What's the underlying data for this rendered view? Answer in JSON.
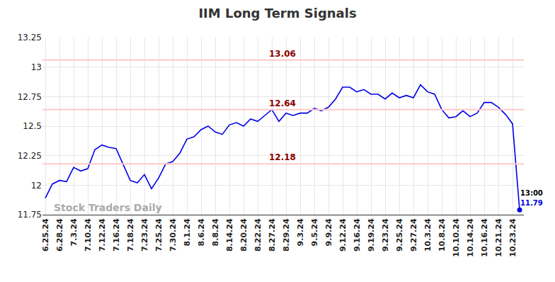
{
  "chart_data": {
    "type": "line",
    "title": "IIM Long Term Signals",
    "categories": [
      "6.25.24",
      null,
      "6.28.24",
      null,
      "7.3.24",
      null,
      "7.10.24",
      null,
      "7.12.24",
      null,
      "7.16.24",
      null,
      "7.18.24",
      null,
      "7.23.24",
      null,
      "7.25.24",
      null,
      "7.30.24",
      null,
      "8.1.24",
      null,
      "8.6.24",
      null,
      "8.8.24",
      null,
      "8.14.24",
      null,
      "8.20.24",
      null,
      "8.22.24",
      null,
      "8.27.24",
      null,
      "8.29.24",
      null,
      "9.3.24",
      null,
      "9.5.24",
      null,
      "9.9.24",
      null,
      "9.12.24",
      null,
      "9.16.24",
      null,
      "9.19.24",
      null,
      "9.23.24",
      null,
      "9.25.24",
      null,
      "9.27.24",
      null,
      "10.3.24",
      null,
      "10.8.24",
      null,
      "10.10.24",
      null,
      "10.14.24",
      null,
      "10.16.24",
      null,
      "10.21.24",
      null,
      "10.23.24",
      null
    ],
    "values": [
      11.89,
      12.01,
      12.04,
      12.03,
      12.15,
      12.12,
      12.14,
      12.3,
      12.34,
      12.32,
      12.31,
      12.17,
      12.04,
      12.02,
      12.09,
      11.97,
      12.06,
      12.18,
      12.2,
      12.27,
      12.39,
      12.41,
      12.47,
      12.5,
      12.45,
      12.43,
      12.51,
      12.53,
      12.5,
      12.56,
      12.54,
      12.59,
      12.64,
      12.54,
      12.61,
      12.59,
      12.61,
      12.61,
      12.65,
      12.63,
      12.66,
      12.73,
      12.83,
      12.83,
      12.79,
      12.81,
      12.77,
      12.77,
      12.73,
      12.78,
      12.74,
      12.76,
      12.74,
      12.85,
      12.79,
      12.77,
      12.64,
      12.57,
      12.58,
      12.63,
      12.58,
      12.61,
      12.7,
      12.7,
      12.66,
      12.6,
      12.52,
      11.79
    ],
    "color": "#0000e6",
    "ylim": [
      11.75,
      13.25
    ],
    "yticks": [
      11.75,
      12,
      12.25,
      12.5,
      12.75,
      13,
      13.25
    ],
    "grid": true,
    "levels": [
      13.06,
      12.64,
      12.18
    ],
    "last_time": "13:00",
    "watermark": "Stock Traders Daily"
  }
}
